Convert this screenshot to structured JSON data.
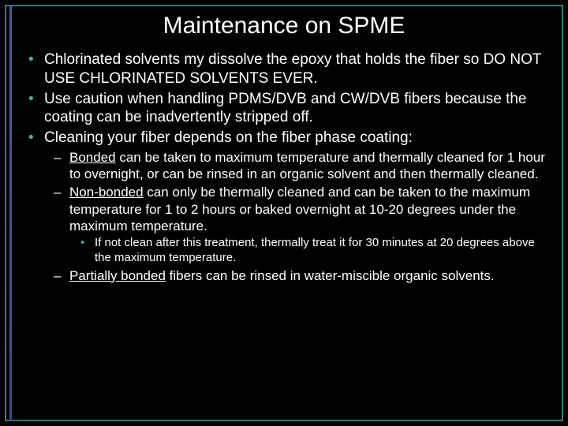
{
  "colors": {
    "background": "#000000",
    "text": "#ffffff",
    "bullet_accent": "#4aa8a8",
    "border": "#3a7a7a",
    "left_accent": "#4a5aa8"
  },
  "typography": {
    "title_fontsize": 30,
    "level1_fontsize": 19,
    "level2_fontsize": 17,
    "level3_fontsize": 15,
    "font_family": "Verdana"
  },
  "title": "Maintenance on SPME",
  "bullets": {
    "b1": "Chlorinated solvents my dissolve the epoxy that holds the fiber so DO NOT USE CHLORINATED SOLVENTS EVER.",
    "b2": "Use caution when handling PDMS/DVB and CW/DVB fibers because the coating can be inadvertently stripped off.",
    "b3": "Cleaning your fiber depends on the fiber phase coating:",
    "b3_1_u": "Bonded",
    "b3_1_t": " can be taken to maximum temperature and thermally cleaned for 1 hour to overnight, or can be rinsed in an organic solvent and then thermally cleaned.",
    "b3_2_u": "Non-bonded",
    "b3_2_t": " can only be thermally cleaned and can be taken to the maximum temperature for 1 to 2 hours or baked overnight at 10-20 degrees under the maximum temperature.",
    "b3_2_1": "If not clean after this treatment, thermally treat it for 30 minutes at 20 degrees above the maximum temperature.",
    "b3_3_u": "Partially bonded",
    "b3_3_t": " fibers can be rinsed in water-miscible organic solvents."
  }
}
